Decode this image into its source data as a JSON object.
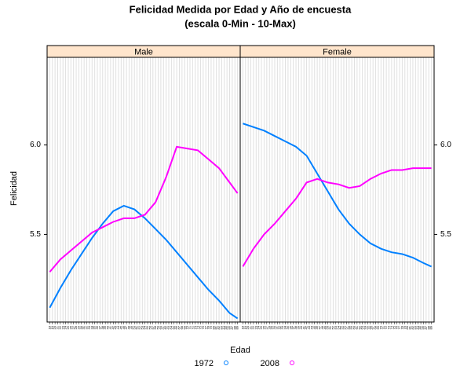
{
  "chart_data": [
    {
      "type": "line",
      "title": "Felicidad Medida por Edad y Año de encuesta",
      "subtitle": "(escala 0-Min - 10-Max)",
      "x_label": "Edad",
      "y_label": "Felicidad",
      "panel": "Male",
      "y_axis_side": "left",
      "x": [
        18,
        22,
        26,
        30,
        34,
        38,
        42,
        46,
        50,
        54,
        58,
        62,
        66,
        70,
        74,
        78,
        82,
        86,
        89
      ],
      "series": [
        {
          "name": "1972",
          "color": "#0080ff",
          "values": [
            5.09,
            5.2,
            5.3,
            5.39,
            5.48,
            5.56,
            5.63,
            5.66,
            5.64,
            5.59,
            5.53,
            5.47,
            5.4,
            5.33,
            5.26,
            5.19,
            5.13,
            5.06,
            5.03
          ]
        },
        {
          "name": "2008",
          "color": "#ff00ff",
          "values": [
            5.29,
            5.36,
            5.41,
            5.46,
            5.51,
            5.54,
            5.57,
            5.59,
            5.59,
            5.61,
            5.68,
            5.82,
            5.99,
            5.98,
            5.97,
            5.92,
            5.87,
            5.79,
            5.73
          ]
        }
      ],
      "xlim": [
        17,
        90
      ],
      "ylim": [
        5.01,
        6.49
      ],
      "xticks": [
        18,
        19,
        20,
        21,
        22,
        23,
        24,
        25,
        26,
        27,
        28,
        29,
        30,
        31,
        32,
        33,
        34,
        35,
        36,
        37,
        38,
        39,
        40,
        41,
        42,
        43,
        44,
        45,
        46,
        47,
        48,
        49,
        50,
        51,
        52,
        53,
        54,
        55,
        56,
        57,
        58,
        59,
        60,
        61,
        62,
        63,
        64,
        65,
        66,
        67,
        68,
        69,
        70,
        71,
        72,
        73,
        74,
        75,
        76,
        77,
        78,
        79,
        80,
        81,
        82,
        83,
        84,
        85,
        86,
        87,
        88,
        89
      ],
      "yticks": [
        5.5,
        {
          "value": 6,
          "label": "6.0"
        }
      ],
      "grid": true
    },
    {
      "type": "line",
      "panel": "Female",
      "y_axis_side": "right",
      "x": [
        18,
        22,
        26,
        30,
        34,
        38,
        42,
        46,
        50,
        54,
        58,
        62,
        66,
        70,
        74,
        78,
        82,
        86,
        89
      ],
      "series": [
        {
          "name": "1972",
          "color": "#0080ff",
          "values": [
            6.12,
            6.1,
            6.08,
            6.05,
            6.02,
            5.99,
            5.94,
            5.84,
            5.74,
            5.64,
            5.56,
            5.5,
            5.45,
            5.42,
            5.4,
            5.39,
            5.37,
            5.34,
            5.32
          ]
        },
        {
          "name": "2008",
          "color": "#ff00ff",
          "values": [
            5.32,
            5.42,
            5.5,
            5.56,
            5.63,
            5.7,
            5.79,
            5.81,
            5.79,
            5.78,
            5.76,
            5.77,
            5.81,
            5.84,
            5.86,
            5.86,
            5.87,
            5.87,
            5.87
          ]
        }
      ],
      "xlim": [
        17,
        90
      ],
      "ylim": [
        5.01,
        6.49
      ],
      "xticks": [
        18,
        19,
        20,
        21,
        22,
        23,
        24,
        25,
        26,
        27,
        28,
        29,
        30,
        31,
        32,
        33,
        34,
        35,
        36,
        37,
        38,
        39,
        40,
        41,
        42,
        43,
        44,
        45,
        46,
        47,
        48,
        49,
        50,
        51,
        52,
        53,
        54,
        55,
        56,
        57,
        58,
        59,
        60,
        61,
        62,
        63,
        64,
        65,
        66,
        67,
        68,
        69,
        70,
        71,
        72,
        73,
        74,
        75,
        76,
        77,
        78,
        79,
        80,
        81,
        82,
        83,
        84,
        85,
        86,
        87,
        88,
        89
      ],
      "yticks": [
        5.5,
        {
          "value": 6,
          "label": "6.0"
        }
      ],
      "grid": true
    }
  ]
}
